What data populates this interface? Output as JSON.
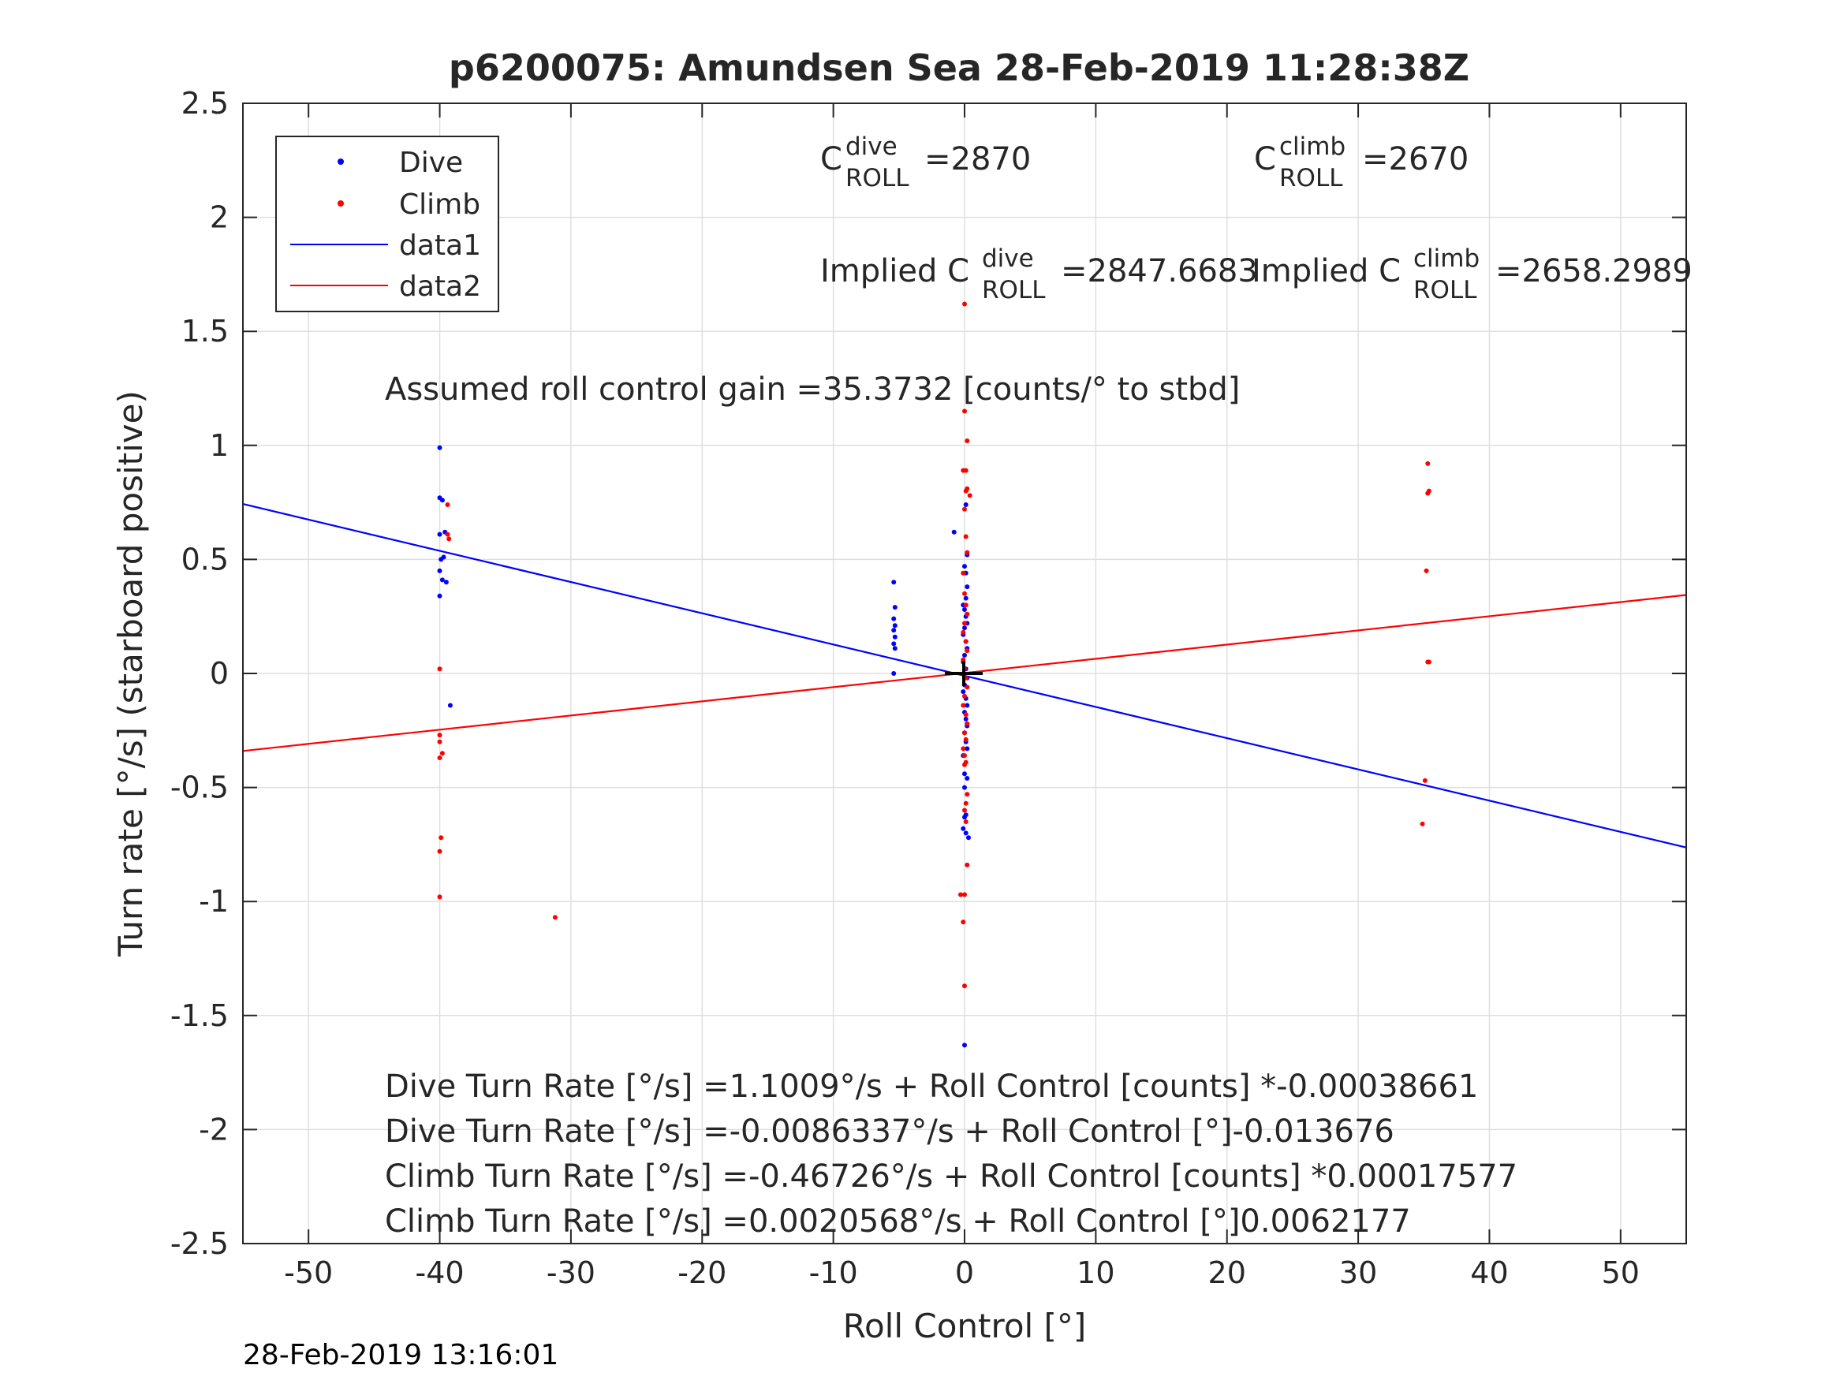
{
  "chart_data": {
    "type": "scatter",
    "title": "p6200075: Amundsen Sea 28-Feb-2019 11:28:38Z",
    "xlabel": "Roll Control [°]",
    "ylabel": "Turn rate [°/s] (starboard positive)",
    "xlim": [
      -55,
      55
    ],
    "ylim": [
      -2.5,
      2.5
    ],
    "grid": true,
    "legend_position": "top-left",
    "x_ticks": [
      -50,
      -40,
      -30,
      -20,
      -10,
      0,
      10,
      20,
      30,
      40,
      50
    ],
    "x_tick_labels": [
      "-50",
      "-40",
      "-30",
      "-20",
      "-10",
      "0",
      "10",
      "20",
      "30",
      "40",
      "50"
    ],
    "y_ticks": [
      -2.5,
      -2,
      -1.5,
      -1,
      -0.5,
      0,
      0.5,
      1,
      1.5,
      2,
      2.5
    ],
    "y_tick_labels": [
      "-2.5",
      "-2",
      "-1.5",
      "-1",
      "-0.5",
      "0",
      "0.5",
      "1",
      "1.5",
      "2",
      "2.5"
    ],
    "colors": {
      "dive": "#0000ff",
      "climb": "#ff0000",
      "axis": "#262626",
      "grid": "#dfdfdf"
    },
    "series": [
      {
        "name": "Dive",
        "kind": "points",
        "color": "#0000ff",
        "x": [
          -40,
          -39.8,
          -40,
          -39.6,
          -40,
          -39.7,
          -39.9,
          -40,
          -39.5,
          -39.8,
          -40,
          -39.2,
          -5.4,
          -5.3,
          -5.4,
          -5.3,
          -5.4,
          -5.3,
          -5.4,
          -5.3,
          -5.4,
          -0.1,
          0,
          0.1,
          0.2,
          0,
          -0.1,
          0.1,
          0.2,
          0,
          -0.1,
          0.1,
          0.2,
          0,
          -0.1,
          0.1,
          0.2,
          0,
          0.1,
          0.2,
          0,
          0.1,
          0.2,
          -0.1,
          0.1,
          0.2,
          0,
          0.2,
          0.1,
          0,
          0,
          0.2,
          0.1,
          0,
          0.3,
          -0.1,
          0.1,
          0,
          -0.8,
          0.1
        ],
        "y": [
          0.99,
          0.76,
          0.77,
          0.62,
          0.61,
          0.51,
          0.5,
          0.45,
          0.4,
          0.41,
          0.34,
          -0.14,
          0.4,
          0.29,
          0.24,
          0.21,
          0.19,
          0.16,
          0.13,
          0.11,
          0,
          0.3,
          0.28,
          0.25,
          0.22,
          0.2,
          0.17,
          0.14,
          0.11,
          0.08,
          0.05,
          0.02,
          -0.02,
          -0.05,
          -0.08,
          -0.11,
          -0.14,
          -0.17,
          -0.2,
          -0.23,
          -0.26,
          -0.3,
          -0.33,
          -0.36,
          0.33,
          0.52,
          0.47,
          0.38,
          0.44,
          -0.44,
          -0.5,
          -0.46,
          -0.62,
          -0.63,
          -0.72,
          -0.68,
          -0.7,
          -1.63,
          0.62,
          0.74
        ],
        "point_radius": 3
      },
      {
        "name": "Climb",
        "kind": "points",
        "color": "#ff0000",
        "x": [
          -39.4,
          -39.4,
          -39.3,
          -40,
          -40,
          -40,
          -39.8,
          -40,
          -39.9,
          -40,
          -40,
          -31.2,
          0,
          0,
          0.2,
          0.1,
          -0.1,
          0.1,
          0.2,
          0,
          0.4,
          0.1,
          0.2,
          -0.1,
          0,
          0.1,
          0.2,
          0,
          -0.1,
          0.1,
          0.2,
          -0.1,
          0,
          0.1,
          0.2,
          0,
          -0.1,
          0.1,
          0.2,
          0,
          0.1,
          -0.1,
          0,
          0.1,
          0,
          0.2,
          0.1,
          0,
          0.1,
          -0.3,
          0,
          -0.1,
          0,
          0.2,
          35.3,
          35.4,
          35.3,
          35.2,
          35.3,
          35.4,
          35.1,
          34.9
        ],
        "y": [
          0.74,
          0.61,
          0.59,
          0.02,
          -0.27,
          -0.3,
          -0.35,
          -0.37,
          -0.72,
          -0.78,
          -0.98,
          -1.07,
          1.62,
          1.15,
          1.02,
          0.89,
          0.89,
          0.8,
          0.81,
          0.72,
          0.78,
          0.6,
          0.53,
          0.44,
          0.35,
          0.3,
          0.26,
          0.22,
          0.18,
          0.14,
          0.1,
          0.06,
          0.02,
          -0.02,
          -0.06,
          -0.1,
          -0.14,
          -0.18,
          -0.22,
          -0.26,
          -0.29,
          -0.33,
          -0.36,
          -0.39,
          -0.4,
          -0.53,
          -0.57,
          -0.6,
          -0.65,
          -0.97,
          -0.97,
          -1.09,
          -1.37,
          -0.84,
          0.92,
          0.8,
          0.79,
          0.45,
          0.05,
          0.05,
          -0.47,
          -0.66
        ],
        "point_radius": 3
      },
      {
        "name": "data1",
        "kind": "line",
        "color": "#0000ff",
        "x": [
          -55,
          55
        ],
        "y": [
          0.743,
          -0.763
        ]
      },
      {
        "name": "data2",
        "kind": "line",
        "color": "#ff0000",
        "x": [
          -55,
          55
        ],
        "y": [
          -0.34,
          0.344
        ]
      }
    ],
    "annotations": {
      "c_dive_base": "C",
      "c_dive_sup": "dive",
      "c_dive_sub": "ROLL",
      "c_dive_value": "=2870",
      "c_climb_base": "C",
      "c_climb_sup": "climb",
      "c_climb_sub": "ROLL",
      "c_climb_value": "=2670",
      "implied_dive_base": "Implied C",
      "implied_dive_sup": "dive",
      "implied_dive_sub": "ROLL",
      "implied_dive_value": "=2847.6683",
      "implied_climb_base": "Implied C",
      "implied_climb_sup": "climb",
      "implied_climb_sub": "ROLL",
      "implied_climb_value": "=2658.2989",
      "assumed_gain": "Assumed roll control gain =35.3732 [counts/° to stbd]",
      "eq1": "Dive Turn Rate [°/s] =1.1009°/s + Roll Control [counts] *-0.00038661",
      "eq2": "Dive Turn Rate [°/s] =-0.0086337°/s + Roll Control [°]-0.013676",
      "eq3": "Climb Turn Rate [°/s] =-0.46726°/s + Roll Control [counts] *0.00017577",
      "eq4": "Climb Turn Rate [°/s] =0.0020568°/s + Roll Control [°]0.0062177"
    }
  },
  "footer": {
    "timestamp": "28-Feb-2019 13:16:01"
  }
}
